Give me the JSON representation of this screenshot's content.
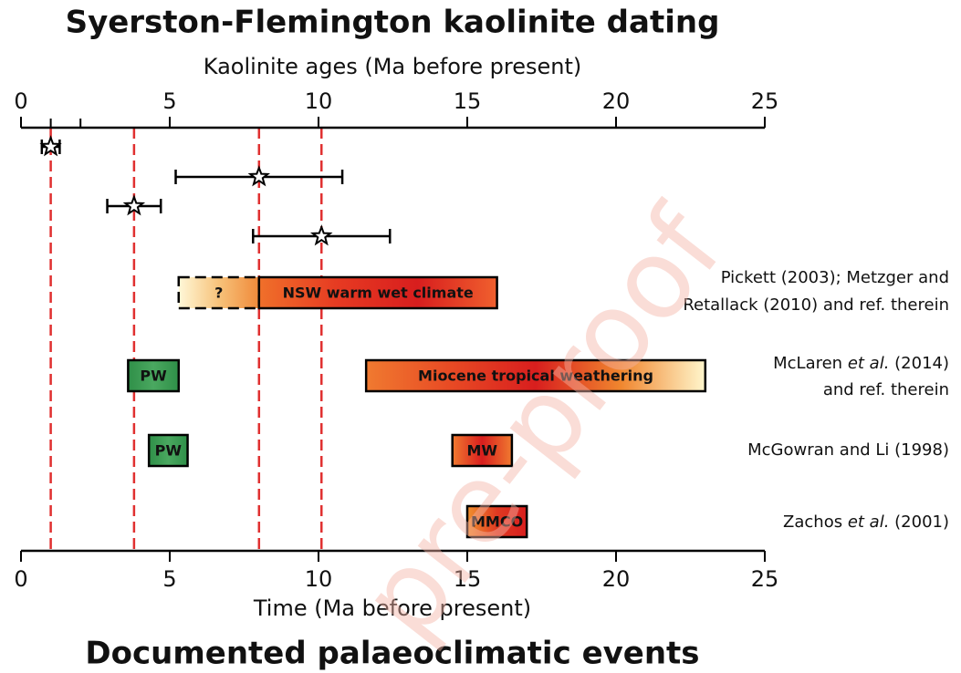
{
  "chart_data": {
    "type": "timeline",
    "title": "Syerston-Flemington kaolinite dating",
    "bottom_title": "Documented palaeoclimatic events",
    "top_axis_label": "Kaolinite ages (Ma before present)",
    "bottom_axis_label": "Time (Ma before present)",
    "xlim": [
      0,
      25
    ],
    "xticks": [
      0,
      5,
      10,
      15,
      20,
      25
    ],
    "top_minor_ticks": [
      1,
      2
    ],
    "ages": {
      "values": [
        1.0,
        8.0,
        3.8,
        10.1
      ],
      "errors": [
        0.3,
        2.8,
        0.9,
        2.3
      ]
    },
    "guide_lines": [
      1.0,
      3.8,
      8.0,
      10.1
    ],
    "guide_color": "#e03030",
    "watermark": "pre-proof",
    "events": [
      {
        "reference": [
          [
            {
              "text": "Pickett (2003); Metzger and"
            }
          ],
          [
            {
              "text": "Retallack (2010) and ref. therein"
            }
          ]
        ],
        "bars": [
          {
            "label": "?",
            "start": 5.3,
            "end": 8.0,
            "dashed": true,
            "colors": [
              "#fff8d8",
              "#f7c27a",
              "#f08a3a"
            ]
          },
          {
            "label": "NSW warm wet climate",
            "start": 8.0,
            "end": 16.0,
            "colors": [
              "#f0702a",
              "#e63a22",
              "#d81e1e",
              "#f0602e"
            ]
          }
        ]
      },
      {
        "reference": [
          [
            {
              "text": "McLaren "
            },
            {
              "text": "et al.",
              "italic": true
            },
            {
              "text": " (2014)"
            }
          ],
          [
            {
              "text": "and ref. therein"
            }
          ]
        ],
        "bars": [
          {
            "label": "PW",
            "start": 3.6,
            "end": 5.3,
            "colors": [
              "#2f8f48",
              "#4aa860",
              "#2f8f48"
            ]
          },
          {
            "label": "Miocene tropical weathering",
            "start": 11.6,
            "end": 23.0,
            "colors": [
              "#f07a30",
              "#e84a24",
              "#d81e1e",
              "#f0862e",
              "#fff6cc"
            ]
          }
        ]
      },
      {
        "reference": [
          [
            {
              "text": "McGowran and Li (1998)"
            }
          ]
        ],
        "bars": [
          {
            "label": "PW",
            "start": 4.3,
            "end": 5.6,
            "colors": [
              "#2f8f48",
              "#4aa860",
              "#2f8f48"
            ]
          },
          {
            "label": "MW",
            "start": 14.5,
            "end": 16.5,
            "colors": [
              "#f07a30",
              "#d81e1e",
              "#f07a30"
            ]
          }
        ]
      },
      {
        "reference": [
          [
            {
              "text": "Zachos "
            },
            {
              "text": "et al.",
              "italic": true
            },
            {
              "text": " (2001)"
            }
          ]
        ],
        "bars": [
          {
            "label": "MMCO",
            "start": 15.0,
            "end": 17.0,
            "colors": [
              "#f0902e",
              "#e03a22",
              "#d81e1e"
            ]
          }
        ]
      }
    ]
  }
}
